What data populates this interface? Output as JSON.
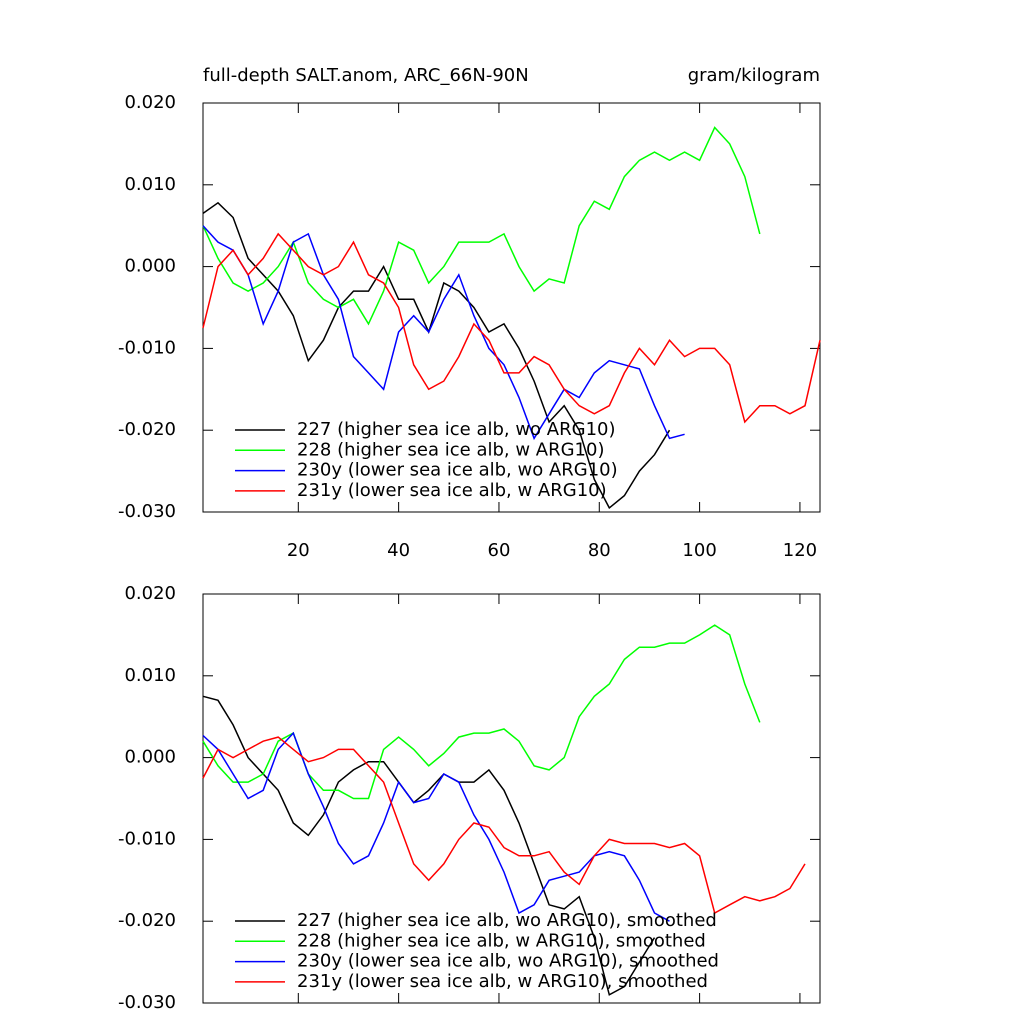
{
  "chart_data": [
    {
      "type": "line",
      "title": "full-depth SALT.anom, ARC_66N-90N",
      "units": "gram/kilogram",
      "x": [
        1,
        4,
        7,
        10,
        13,
        16,
        19,
        22,
        25,
        28,
        31,
        34,
        37,
        40,
        43,
        46,
        49,
        52,
        55,
        58,
        61,
        64,
        67,
        70,
        73,
        76,
        79,
        82,
        85,
        88,
        91,
        94,
        97,
        100,
        103,
        106,
        109,
        112,
        115,
        118,
        121,
        124
      ],
      "xlim": [
        1,
        124
      ],
      "xticks": [
        20,
        40,
        60,
        80,
        100,
        120
      ],
      "xtick_labels": true,
      "ylim": [
        -0.03,
        0.02
      ],
      "yticks": [
        {
          "value": -0.03,
          "label": "-0.030"
        },
        {
          "value": -0.02,
          "label": "-0.020"
        },
        {
          "value": -0.01,
          "label": "-0.010"
        },
        {
          "value": 0,
          "label": "0.000"
        },
        {
          "value": 0.01,
          "label": "0.010"
        },
        {
          "value": 0.02,
          "label": "0.020"
        }
      ],
      "legend": "lower left",
      "series": [
        {
          "name": "227 (higher sea ice alb, wo ARG10)",
          "color": "#000000",
          "values": [
            0.0065,
            0.0078,
            0.006,
            0.001,
            -0.001,
            -0.003,
            -0.006,
            -0.0115,
            -0.009,
            -0.005,
            -0.003,
            -0.003,
            0.0,
            -0.004,
            -0.004,
            -0.008,
            -0.002,
            -0.003,
            -0.005,
            -0.008,
            -0.007,
            -0.01,
            -0.014,
            -0.019,
            -0.017,
            -0.02,
            -0.026,
            -0.0295,
            -0.028,
            -0.025,
            -0.023,
            -0.02,
            null,
            null,
            null,
            null,
            null,
            null,
            null,
            null,
            null,
            null
          ]
        },
        {
          "name": "228 (higher sea ice alb, w ARG10)",
          "color": "#00ff00",
          "values": [
            0.005,
            0.001,
            -0.002,
            -0.003,
            -0.002,
            0.0,
            0.003,
            -0.002,
            -0.004,
            -0.005,
            -0.004,
            -0.007,
            -0.003,
            0.003,
            0.002,
            -0.002,
            0.0,
            0.003,
            0.003,
            0.003,
            0.004,
            0.0,
            -0.003,
            -0.0015,
            -0.002,
            0.005,
            0.008,
            0.007,
            0.011,
            0.013,
            0.014,
            0.013,
            0.014,
            0.013,
            0.017,
            0.015,
            0.011,
            0.004,
            null,
            null,
            null,
            null
          ]
        },
        {
          "name": "230y (lower sea ice alb, wo ARG10)",
          "color": "#0000ff",
          "values": [
            0.005,
            0.003,
            0.002,
            -0.001,
            -0.007,
            -0.003,
            0.003,
            0.004,
            -0.001,
            -0.004,
            -0.011,
            -0.013,
            -0.015,
            -0.008,
            -0.006,
            -0.008,
            -0.004,
            -0.001,
            -0.006,
            -0.01,
            -0.012,
            -0.016,
            -0.021,
            -0.018,
            -0.015,
            -0.016,
            -0.013,
            -0.0115,
            -0.012,
            -0.0125,
            -0.017,
            -0.021,
            -0.0205,
            null,
            null,
            null,
            null,
            null,
            null,
            null,
            null,
            null
          ]
        },
        {
          "name": "231y (lower sea ice alb, w ARG10)",
          "color": "#ff0000",
          "values": [
            -0.0075,
            0.0,
            0.002,
            -0.001,
            0.001,
            0.004,
            0.002,
            0.0,
            -0.001,
            0.0,
            0.003,
            -0.001,
            -0.002,
            -0.005,
            -0.012,
            -0.015,
            -0.014,
            -0.011,
            -0.007,
            -0.009,
            -0.013,
            -0.013,
            -0.011,
            -0.012,
            -0.015,
            -0.017,
            -0.018,
            -0.017,
            -0.013,
            -0.01,
            -0.012,
            -0.009,
            -0.011,
            -0.01,
            -0.01,
            -0.012,
            -0.019,
            -0.017,
            -0.017,
            -0.018,
            -0.017,
            -0.009
          ]
        }
      ]
    },
    {
      "type": "line",
      "x": [
        1,
        4,
        7,
        10,
        13,
        16,
        19,
        22,
        25,
        28,
        31,
        34,
        37,
        40,
        43,
        46,
        49,
        52,
        55,
        58,
        61,
        64,
        67,
        70,
        73,
        76,
        79,
        82,
        85,
        88,
        91,
        94,
        97,
        100,
        103,
        106,
        109,
        112,
        115,
        118,
        121,
        124
      ],
      "xlim": [
        1,
        124
      ],
      "xticks": [
        20,
        40,
        60,
        80,
        100,
        120
      ],
      "xtick_labels": false,
      "ylim": [
        -0.03,
        0.02
      ],
      "yticks": [
        {
          "value": -0.03,
          "label": "-0.030"
        },
        {
          "value": -0.02,
          "label": "-0.020"
        },
        {
          "value": -0.01,
          "label": "-0.010"
        },
        {
          "value": 0,
          "label": "0.000"
        },
        {
          "value": 0.01,
          "label": "0.010"
        },
        {
          "value": 0.02,
          "label": "0.020"
        }
      ],
      "legend": "lower left",
      "series": [
        {
          "name": "227 (higher sea ice alb, wo ARG10), smoothed",
          "color": "#000000",
          "values": [
            0.0075,
            0.007,
            0.004,
            0.0,
            -0.002,
            -0.004,
            -0.008,
            -0.0095,
            -0.007,
            -0.003,
            -0.0015,
            -0.0005,
            -0.0005,
            -0.003,
            -0.0055,
            -0.004,
            -0.002,
            -0.003,
            -0.003,
            -0.0015,
            -0.004,
            -0.008,
            -0.013,
            -0.018,
            -0.0185,
            -0.017,
            -0.022,
            -0.029,
            -0.028,
            -0.025,
            -0.022,
            null,
            null,
            null,
            null,
            null,
            null,
            null,
            null,
            null,
            null,
            null
          ]
        },
        {
          "name": "228 (higher sea ice alb, w ARG10), smoothed",
          "color": "#00ff00",
          "values": [
            0.002,
            -0.001,
            -0.003,
            -0.003,
            -0.002,
            0.002,
            0.003,
            -0.002,
            -0.004,
            -0.004,
            -0.005,
            -0.005,
            0.001,
            0.0025,
            0.001,
            -0.001,
            0.0005,
            0.0025,
            0.003,
            0.003,
            0.0035,
            0.002,
            -0.001,
            -0.0015,
            0.0,
            0.005,
            0.0075,
            0.009,
            0.012,
            0.0135,
            0.0135,
            0.014,
            0.014,
            0.015,
            0.0162,
            0.015,
            0.009,
            0.0043,
            null,
            null,
            null,
            null
          ]
        },
        {
          "name": "230y (lower sea ice alb, wo ARG10), smoothed",
          "color": "#0000ff",
          "values": [
            0.0027,
            0.001,
            -0.002,
            -0.005,
            -0.004,
            0.001,
            0.003,
            -0.002,
            -0.006,
            -0.0105,
            -0.013,
            -0.012,
            -0.008,
            -0.003,
            -0.0055,
            -0.005,
            -0.002,
            -0.003,
            -0.007,
            -0.01,
            -0.014,
            -0.019,
            -0.018,
            -0.015,
            -0.0145,
            -0.014,
            -0.012,
            -0.0115,
            -0.012,
            -0.015,
            -0.019,
            -0.02,
            null,
            null,
            null,
            null,
            null,
            null,
            null,
            null,
            null,
            null
          ]
        },
        {
          "name": "231y (lower sea ice alb, w ARG10), smoothed",
          "color": "#ff0000",
          "values": [
            -0.0025,
            0.001,
            0.0,
            0.001,
            0.002,
            0.0025,
            0.001,
            -0.0005,
            0.0,
            0.001,
            0.001,
            -0.001,
            -0.003,
            -0.008,
            -0.013,
            -0.015,
            -0.013,
            -0.01,
            -0.008,
            -0.0085,
            -0.011,
            -0.012,
            -0.012,
            -0.0115,
            -0.014,
            -0.0155,
            -0.012,
            -0.01,
            -0.0105,
            -0.0105,
            -0.0105,
            -0.011,
            -0.0105,
            -0.012,
            -0.019,
            -0.018,
            -0.017,
            -0.0175,
            -0.017,
            -0.016,
            -0.013,
            null
          ]
        }
      ]
    }
  ]
}
